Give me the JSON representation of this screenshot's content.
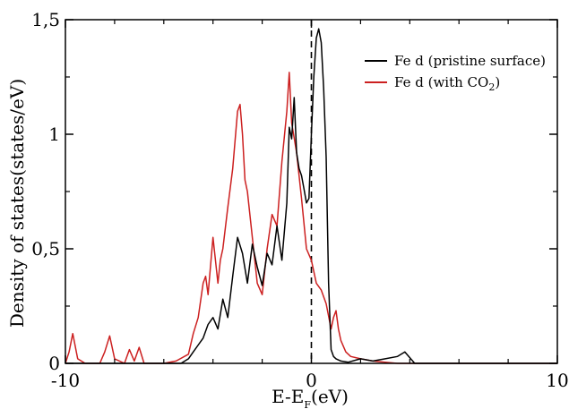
{
  "chart_data": {
    "type": "line",
    "title": "",
    "xlabel": "E-E",
    "xlabel_sub": "F",
    "xlabel_unit": "(eV)",
    "ylabel": "Density of states(states/eV)",
    "xlim": [
      -10,
      10
    ],
    "ylim": [
      0,
      1.5
    ],
    "x_ticks": [
      -10,
      0,
      10
    ],
    "x_tick_labels": [
      "-10",
      "0",
      "10"
    ],
    "y_ticks": [
      0,
      0.5,
      1,
      1.5
    ],
    "y_tick_labels": [
      "0",
      "0,5",
      "1",
      "1,5"
    ],
    "fermi_level_x": 0,
    "grid": false,
    "legend_position": "top-right",
    "series": [
      {
        "name": "Fe d (pristine surface)",
        "legend_prefix": "Fe d (pristine surface)",
        "legend_sub": "",
        "legend_suffix": "",
        "color": "#000000",
        "x": [
          -10,
          -5.3,
          -5.0,
          -4.8,
          -4.6,
          -4.4,
          -4.2,
          -4.0,
          -3.8,
          -3.6,
          -3.4,
          -3.2,
          -3.0,
          -2.8,
          -2.6,
          -2.4,
          -2.2,
          -2.0,
          -1.8,
          -1.6,
          -1.4,
          -1.2,
          -1.0,
          -0.9,
          -0.8,
          -0.7,
          -0.6,
          -0.5,
          -0.4,
          -0.3,
          -0.2,
          -0.1,
          0.0,
          0.1,
          0.2,
          0.3,
          0.4,
          0.5,
          0.6,
          0.7,
          0.8,
          0.9,
          1.0,
          1.2,
          1.5,
          2.0,
          2.5,
          3.0,
          3.5,
          3.8,
          4.2,
          5.0,
          6.0,
          10
        ],
        "y": [
          0.0,
          0.0,
          0.02,
          0.05,
          0.08,
          0.11,
          0.17,
          0.2,
          0.15,
          0.28,
          0.2,
          0.38,
          0.55,
          0.48,
          0.35,
          0.52,
          0.42,
          0.34,
          0.48,
          0.43,
          0.6,
          0.45,
          0.7,
          1.03,
          0.98,
          1.16,
          0.92,
          0.85,
          0.82,
          0.76,
          0.7,
          0.72,
          1.0,
          1.25,
          1.42,
          1.46,
          1.4,
          1.2,
          0.9,
          0.35,
          0.06,
          0.03,
          0.02,
          0.01,
          0.005,
          0.02,
          0.01,
          0.02,
          0.03,
          0.05,
          0.0,
          0.0,
          0.0,
          0.0
        ]
      },
      {
        "name": "Fe d (with CO2)",
        "legend_prefix": "Fe d (with CO",
        "legend_sub": "2",
        "legend_suffix": ")",
        "color": "#cc2020",
        "x": [
          -10,
          -9.85,
          -9.7,
          -9.5,
          -9.2,
          -8.6,
          -8.4,
          -8.2,
          -8.0,
          -7.6,
          -7.4,
          -7.2,
          -7.0,
          -6.8,
          -6.6,
          -6.0,
          -5.5,
          -5.0,
          -4.8,
          -4.6,
          -4.4,
          -4.3,
          -4.2,
          -4.0,
          -3.8,
          -3.7,
          -3.6,
          -3.4,
          -3.2,
          -3.0,
          -2.9,
          -2.8,
          -2.7,
          -2.6,
          -2.4,
          -2.2,
          -2.0,
          -1.8,
          -1.6,
          -1.4,
          -1.2,
          -1.0,
          -0.9,
          -0.8,
          -0.6,
          -0.4,
          -0.2,
          0.0,
          0.2,
          0.4,
          0.6,
          0.8,
          0.9,
          1.0,
          1.1,
          1.2,
          1.4,
          1.6,
          2.0,
          2.5,
          3.0,
          3.5,
          4.0,
          4.5,
          10
        ],
        "y": [
          0.0,
          0.05,
          0.13,
          0.02,
          0.0,
          0.0,
          0.05,
          0.12,
          0.02,
          0.0,
          0.06,
          0.01,
          0.07,
          0.0,
          0.0,
          0.0,
          0.01,
          0.04,
          0.13,
          0.2,
          0.35,
          0.38,
          0.3,
          0.55,
          0.35,
          0.45,
          0.5,
          0.68,
          0.85,
          1.1,
          1.13,
          1.0,
          0.8,
          0.75,
          0.55,
          0.35,
          0.3,
          0.5,
          0.65,
          0.6,
          0.88,
          1.1,
          1.27,
          1.05,
          0.92,
          0.72,
          0.5,
          0.45,
          0.35,
          0.32,
          0.26,
          0.15,
          0.2,
          0.23,
          0.15,
          0.1,
          0.05,
          0.03,
          0.02,
          0.01,
          0.005,
          0.0,
          0.0,
          0.0,
          0.0
        ]
      }
    ]
  }
}
